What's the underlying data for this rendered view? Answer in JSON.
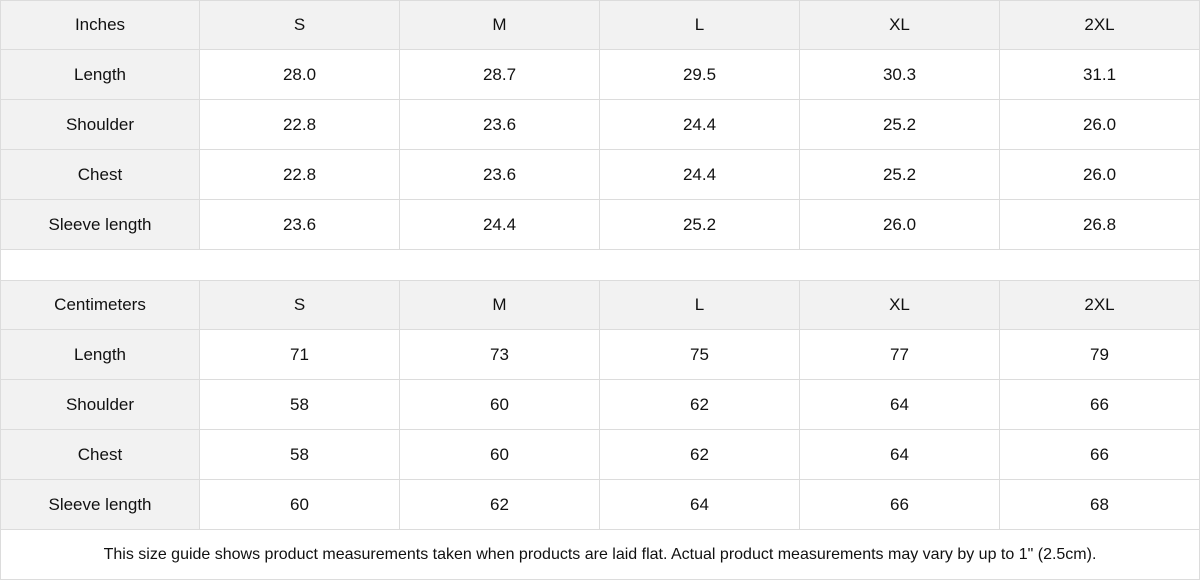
{
  "inches": {
    "header": [
      "Inches",
      "S",
      "M",
      "L",
      "XL",
      "2XL"
    ],
    "rows": [
      [
        "Length",
        "28.0",
        "28.7",
        "29.5",
        "30.3",
        "31.1"
      ],
      [
        "Shoulder",
        "22.8",
        "23.6",
        "24.4",
        "25.2",
        "26.0"
      ],
      [
        "Chest",
        "22.8",
        "23.6",
        "24.4",
        "25.2",
        "26.0"
      ],
      [
        "Sleeve length",
        "23.6",
        "24.4",
        "25.2",
        "26.0",
        "26.8"
      ]
    ]
  },
  "centimeters": {
    "header": [
      "Centimeters",
      "S",
      "M",
      "L",
      "XL",
      "2XL"
    ],
    "rows": [
      [
        "Length",
        "71",
        "73",
        "75",
        "77",
        "79"
      ],
      [
        "Shoulder",
        "58",
        "60",
        "62",
        "64",
        "66"
      ],
      [
        "Chest",
        "58",
        "60",
        "62",
        "64",
        "66"
      ],
      [
        "Sleeve length",
        "60",
        "62",
        "64",
        "66",
        "68"
      ]
    ]
  },
  "note": "This size guide shows product measurements taken when products are laid flat.  Actual product measurements may vary by up to 1\" (2.5cm).",
  "colors": {
    "header_bg": "#f2f2f2",
    "border": "#dcdcdc"
  }
}
